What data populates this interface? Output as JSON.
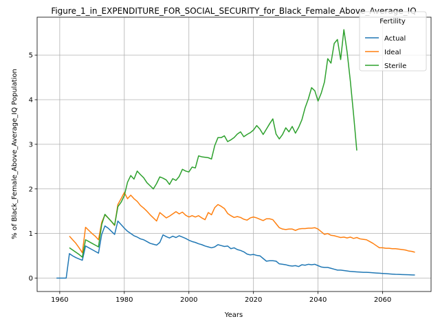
{
  "chart_data": {
    "type": "line",
    "title": "Figure_1_in_EXPENDITURE_FOR_SOCIAL_SECURITY_for_Black_Female_Above_Average_IQ",
    "xlabel": "Years",
    "ylabel": "% of Black_Female_Above_Average_IQ Population",
    "xlim": [
      1953,
      2075
    ],
    "ylim": [
      -0.3,
      5.85
    ],
    "xticks": [
      1960,
      1980,
      2000,
      2020,
      2040,
      2060
    ],
    "yticks": [
      0,
      1,
      2,
      3,
      4,
      5
    ],
    "grid": true,
    "legend": {
      "title": "Fertility",
      "placement": "top-right"
    },
    "series": [
      {
        "name": "Actual",
        "color": "#1f77b4",
        "points": [
          [
            1959,
            0
          ],
          [
            1960,
            0
          ],
          [
            1961,
            0
          ],
          [
            1962,
            0
          ],
          [
            1963,
            0.55
          ],
          [
            1964,
            0.5
          ],
          [
            1965,
            0.46
          ],
          [
            1966,
            0.43
          ],
          [
            1967,
            0.4
          ],
          [
            1968,
            0.72
          ],
          [
            1969,
            0.68
          ],
          [
            1970,
            0.64
          ],
          [
            1971,
            0.6
          ],
          [
            1972,
            0.56
          ],
          [
            1973,
            0.98
          ],
          [
            1974,
            1.17
          ],
          [
            1975,
            1.12
          ],
          [
            1976,
            1.05
          ],
          [
            1977,
            0.98
          ],
          [
            1978,
            1.28
          ],
          [
            1979,
            1.2
          ],
          [
            1980,
            1.12
          ],
          [
            1981,
            1.05
          ],
          [
            1982,
            1.0
          ],
          [
            1983,
            0.95
          ],
          [
            1984,
            0.92
          ],
          [
            1985,
            0.88
          ],
          [
            1986,
            0.86
          ],
          [
            1987,
            0.82
          ],
          [
            1988,
            0.78
          ],
          [
            1989,
            0.76
          ],
          [
            1990,
            0.74
          ],
          [
            1991,
            0.8
          ],
          [
            1992,
            0.97
          ],
          [
            1993,
            0.93
          ],
          [
            1994,
            0.9
          ],
          [
            1995,
            0.94
          ],
          [
            1996,
            0.91
          ],
          [
            1997,
            0.95
          ],
          [
            1998,
            0.92
          ],
          [
            1999,
            0.89
          ],
          [
            2000,
            0.85
          ],
          [
            2001,
            0.82
          ],
          [
            2002,
            0.8
          ],
          [
            2003,
            0.77
          ],
          [
            2004,
            0.75
          ],
          [
            2005,
            0.72
          ],
          [
            2006,
            0.7
          ],
          [
            2007,
            0.68
          ],
          [
            2008,
            0.7
          ],
          [
            2009,
            0.75
          ],
          [
            2010,
            0.73
          ],
          [
            2011,
            0.71
          ],
          [
            2012,
            0.72
          ],
          [
            2013,
            0.66
          ],
          [
            2014,
            0.68
          ],
          [
            2015,
            0.64
          ],
          [
            2016,
            0.62
          ],
          [
            2017,
            0.59
          ],
          [
            2018,
            0.54
          ],
          [
            2019,
            0.52
          ],
          [
            2020,
            0.53
          ],
          [
            2021,
            0.51
          ],
          [
            2022,
            0.5
          ],
          [
            2023,
            0.44
          ],
          [
            2024,
            0.38
          ],
          [
            2025,
            0.39
          ],
          [
            2026,
            0.39
          ],
          [
            2027,
            0.38
          ],
          [
            2028,
            0.32
          ],
          [
            2029,
            0.31
          ],
          [
            2030,
            0.3
          ],
          [
            2031,
            0.28
          ],
          [
            2032,
            0.27
          ],
          [
            2033,
            0.28
          ],
          [
            2034,
            0.26
          ],
          [
            2035,
            0.3
          ],
          [
            2036,
            0.29
          ],
          [
            2037,
            0.31
          ],
          [
            2038,
            0.3
          ],
          [
            2039,
            0.31
          ],
          [
            2040,
            0.28
          ],
          [
            2041,
            0.25
          ],
          [
            2042,
            0.24
          ],
          [
            2043,
            0.24
          ],
          [
            2044,
            0.22
          ],
          [
            2045,
            0.2
          ],
          [
            2046,
            0.18
          ],
          [
            2047,
            0.18
          ],
          [
            2048,
            0.17
          ],
          [
            2049,
            0.16
          ],
          [
            2050,
            0.15
          ],
          [
            2051,
            0.145
          ],
          [
            2052,
            0.14
          ],
          [
            2053,
            0.135
          ],
          [
            2054,
            0.13
          ],
          [
            2055,
            0.13
          ],
          [
            2056,
            0.125
          ],
          [
            2057,
            0.12
          ],
          [
            2058,
            0.115
          ],
          [
            2059,
            0.11
          ],
          [
            2060,
            0.105
          ],
          [
            2061,
            0.1
          ],
          [
            2062,
            0.095
          ],
          [
            2063,
            0.09
          ],
          [
            2064,
            0.085
          ],
          [
            2065,
            0.083
          ],
          [
            2066,
            0.08
          ],
          [
            2067,
            0.078
          ],
          [
            2068,
            0.075
          ],
          [
            2069,
            0.072
          ],
          [
            2070,
            0.07
          ]
        ]
      },
      {
        "name": "Ideal",
        "color": "#ff7f0e",
        "points": [
          [
            1963,
            0.94
          ],
          [
            1964,
            0.86
          ],
          [
            1965,
            0.78
          ],
          [
            1966,
            0.68
          ],
          [
            1967,
            0.57
          ],
          [
            1968,
            1.14
          ],
          [
            1969,
            1.07
          ],
          [
            1970,
            1.0
          ],
          [
            1971,
            0.94
          ],
          [
            1972,
            0.86
          ],
          [
            1973,
            1.25
          ],
          [
            1974,
            1.42
          ],
          [
            1975,
            1.35
          ],
          [
            1976,
            1.27
          ],
          [
            1977,
            1.18
          ],
          [
            1978,
            1.65
          ],
          [
            1979,
            1.78
          ],
          [
            1980,
            1.92
          ],
          [
            1981,
            1.78
          ],
          [
            1982,
            1.86
          ],
          [
            1983,
            1.78
          ],
          [
            1984,
            1.72
          ],
          [
            1985,
            1.63
          ],
          [
            1986,
            1.57
          ],
          [
            1987,
            1.5
          ],
          [
            1988,
            1.42
          ],
          [
            1989,
            1.35
          ],
          [
            1990,
            1.28
          ],
          [
            1991,
            1.47
          ],
          [
            1992,
            1.41
          ],
          [
            1993,
            1.35
          ],
          [
            1994,
            1.39
          ],
          [
            1995,
            1.44
          ],
          [
            1996,
            1.49
          ],
          [
            1997,
            1.44
          ],
          [
            1998,
            1.48
          ],
          [
            1999,
            1.41
          ],
          [
            2000,
            1.37
          ],
          [
            2001,
            1.4
          ],
          [
            2002,
            1.37
          ],
          [
            2003,
            1.4
          ],
          [
            2004,
            1.35
          ],
          [
            2005,
            1.31
          ],
          [
            2006,
            1.47
          ],
          [
            2007,
            1.42
          ],
          [
            2008,
            1.58
          ],
          [
            2009,
            1.65
          ],
          [
            2010,
            1.61
          ],
          [
            2011,
            1.56
          ],
          [
            2012,
            1.45
          ],
          [
            2013,
            1.4
          ],
          [
            2014,
            1.36
          ],
          [
            2015,
            1.38
          ],
          [
            2016,
            1.36
          ],
          [
            2017,
            1.32
          ],
          [
            2018,
            1.3
          ],
          [
            2019,
            1.35
          ],
          [
            2020,
            1.37
          ],
          [
            2021,
            1.35
          ],
          [
            2022,
            1.32
          ],
          [
            2023,
            1.29
          ],
          [
            2024,
            1.33
          ],
          [
            2025,
            1.33
          ],
          [
            2026,
            1.31
          ],
          [
            2027,
            1.22
          ],
          [
            2028,
            1.13
          ],
          [
            2029,
            1.1
          ],
          [
            2030,
            1.09
          ],
          [
            2031,
            1.1
          ],
          [
            2032,
            1.1
          ],
          [
            2033,
            1.07
          ],
          [
            2034,
            1.1
          ],
          [
            2035,
            1.11
          ],
          [
            2036,
            1.11
          ],
          [
            2037,
            1.12
          ],
          [
            2038,
            1.12
          ],
          [
            2039,
            1.13
          ],
          [
            2040,
            1.1
          ],
          [
            2041,
            1.04
          ],
          [
            2042,
            0.98
          ],
          [
            2043,
            1.0
          ],
          [
            2044,
            0.96
          ],
          [
            2045,
            0.95
          ],
          [
            2046,
            0.93
          ],
          [
            2047,
            0.91
          ],
          [
            2048,
            0.92
          ],
          [
            2049,
            0.9
          ],
          [
            2050,
            0.92
          ],
          [
            2051,
            0.89
          ],
          [
            2052,
            0.91
          ],
          [
            2053,
            0.88
          ],
          [
            2054,
            0.87
          ],
          [
            2055,
            0.86
          ],
          [
            2056,
            0.82
          ],
          [
            2057,
            0.78
          ],
          [
            2058,
            0.73
          ],
          [
            2059,
            0.68
          ],
          [
            2060,
            0.68
          ],
          [
            2061,
            0.67
          ],
          [
            2062,
            0.67
          ],
          [
            2063,
            0.66
          ],
          [
            2064,
            0.66
          ],
          [
            2065,
            0.65
          ],
          [
            2066,
            0.64
          ],
          [
            2067,
            0.63
          ],
          [
            2068,
            0.61
          ],
          [
            2069,
            0.6
          ],
          [
            2070,
            0.58
          ]
        ]
      },
      {
        "name": "Sterile",
        "color": "#2ca02c",
        "points": [
          [
            1963,
            0.68
          ],
          [
            1964,
            0.63
          ],
          [
            1965,
            0.58
          ],
          [
            1966,
            0.53
          ],
          [
            1967,
            0.47
          ],
          [
            1968,
            0.86
          ],
          [
            1969,
            0.82
          ],
          [
            1970,
            0.78
          ],
          [
            1971,
            0.74
          ],
          [
            1972,
            0.7
          ],
          [
            1973,
            1.2
          ],
          [
            1974,
            1.43
          ],
          [
            1975,
            1.35
          ],
          [
            1976,
            1.27
          ],
          [
            1977,
            1.19
          ],
          [
            1978,
            1.6
          ],
          [
            1979,
            1.7
          ],
          [
            1980,
            1.85
          ],
          [
            1981,
            2.15
          ],
          [
            1982,
            2.3
          ],
          [
            1983,
            2.22
          ],
          [
            1984,
            2.4
          ],
          [
            1985,
            2.32
          ],
          [
            1986,
            2.25
          ],
          [
            1987,
            2.14
          ],
          [
            1988,
            2.07
          ],
          [
            1989,
            2.0
          ],
          [
            1990,
            2.12
          ],
          [
            1991,
            2.27
          ],
          [
            1992,
            2.24
          ],
          [
            1993,
            2.2
          ],
          [
            1994,
            2.1
          ],
          [
            1995,
            2.23
          ],
          [
            1996,
            2.19
          ],
          [
            1997,
            2.28
          ],
          [
            1998,
            2.44
          ],
          [
            1999,
            2.4
          ],
          [
            2000,
            2.38
          ],
          [
            2001,
            2.49
          ],
          [
            2002,
            2.47
          ],
          [
            2003,
            2.74
          ],
          [
            2004,
            2.72
          ],
          [
            2005,
            2.71
          ],
          [
            2006,
            2.7
          ],
          [
            2007,
            2.67
          ],
          [
            2008,
            2.97
          ],
          [
            2009,
            3.15
          ],
          [
            2010,
            3.15
          ],
          [
            2011,
            3.19
          ],
          [
            2012,
            3.06
          ],
          [
            2013,
            3.1
          ],
          [
            2014,
            3.15
          ],
          [
            2015,
            3.23
          ],
          [
            2016,
            3.28
          ],
          [
            2017,
            3.17
          ],
          [
            2018,
            3.22
          ],
          [
            2019,
            3.26
          ],
          [
            2020,
            3.32
          ],
          [
            2021,
            3.42
          ],
          [
            2022,
            3.34
          ],
          [
            2023,
            3.22
          ],
          [
            2024,
            3.34
          ],
          [
            2025,
            3.46
          ],
          [
            2026,
            3.57
          ],
          [
            2027,
            3.23
          ],
          [
            2028,
            3.12
          ],
          [
            2029,
            3.22
          ],
          [
            2030,
            3.37
          ],
          [
            2031,
            3.28
          ],
          [
            2032,
            3.4
          ],
          [
            2033,
            3.25
          ],
          [
            2034,
            3.38
          ],
          [
            2035,
            3.55
          ],
          [
            2036,
            3.82
          ],
          [
            2037,
            4.02
          ],
          [
            2038,
            4.27
          ],
          [
            2039,
            4.2
          ],
          [
            2040,
            3.97
          ],
          [
            2041,
            4.15
          ],
          [
            2042,
            4.4
          ],
          [
            2043,
            4.92
          ],
          [
            2044,
            4.82
          ],
          [
            2045,
            5.26
          ],
          [
            2046,
            5.35
          ],
          [
            2047,
            4.9
          ],
          [
            2048,
            5.57
          ],
          [
            2049,
            5.07
          ],
          [
            2050,
            4.42
          ],
          [
            2051,
            3.67
          ],
          [
            2052,
            2.86
          ]
        ]
      }
    ]
  }
}
